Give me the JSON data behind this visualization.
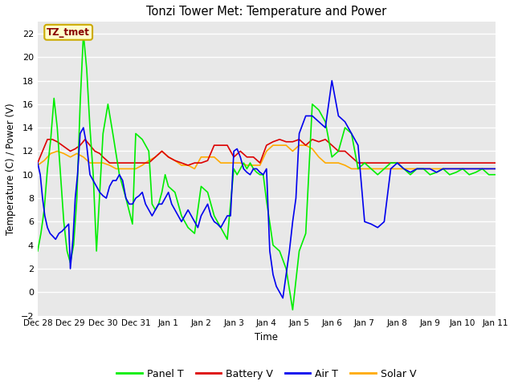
{
  "title": "Tonzi Tower Met: Temperature and Power",
  "xlabel": "Time",
  "ylabel": "Temperature (C) / Power (V)",
  "ylim": [
    -2,
    23
  ],
  "yticks": [
    -2,
    0,
    2,
    4,
    6,
    8,
    10,
    12,
    14,
    16,
    18,
    20,
    22
  ],
  "bg_color": "#e8e8e8",
  "fig_color": "#ffffff",
  "annotation_text": "TZ_tmet",
  "annotation_color": "#880000",
  "annotation_bg": "#ffffcc",
  "annotation_border": "#ccaa00",
  "colors": {
    "panel_t": "#00ee00",
    "battery_v": "#dd0000",
    "air_t": "#0000ee",
    "solar_v": "#ffaa00"
  },
  "legend_labels": [
    "Panel T",
    "Battery V",
    "Air T",
    "Solar V"
  ],
  "x_tick_labels": [
    "Dec 28",
    "Dec 29",
    "Dec 30",
    "Dec 31",
    "Jan 1",
    "Jan 2",
    "Jan 3",
    "Jan 4",
    "Jan 5",
    "Jan 6",
    "Jan 7",
    "Jan 8",
    "Jan 9",
    "Jan 10",
    "Jan 11"
  ],
  "x_tick_positions": [
    0,
    1,
    2,
    3,
    4,
    5,
    6,
    7,
    8,
    9,
    10,
    11,
    12,
    13,
    14
  ],
  "panel_t_x": [
    0.0,
    0.1,
    0.2,
    0.3,
    0.4,
    0.5,
    0.6,
    0.7,
    0.8,
    0.9,
    1.0,
    1.1,
    1.2,
    1.3,
    1.4,
    1.5,
    1.6,
    1.7,
    1.8,
    2.0,
    2.15,
    2.3,
    2.5,
    2.7,
    2.9,
    3.0,
    3.2,
    3.4,
    3.5,
    3.6,
    3.7,
    3.8,
    3.9,
    4.0,
    4.2,
    4.4,
    4.6,
    4.8,
    5.0,
    5.2,
    5.4,
    5.6,
    5.8,
    6.0,
    6.1,
    6.2,
    6.3,
    6.4,
    6.5,
    6.6,
    6.7,
    6.8,
    6.9,
    7.0,
    7.2,
    7.4,
    7.6,
    7.8,
    8.0,
    8.2,
    8.4,
    8.6,
    8.8,
    9.0,
    9.2,
    9.4,
    9.6,
    9.8,
    10.0,
    10.2,
    10.4,
    10.6,
    10.8,
    11.0,
    11.2,
    11.4,
    11.6,
    11.8,
    12.0,
    12.2,
    12.4,
    12.6,
    12.8,
    13.0,
    13.2,
    13.4,
    13.6,
    13.8,
    14.0
  ],
  "panel_t_y": [
    3.5,
    5.0,
    7.0,
    10.5,
    13.0,
    16.5,
    14.0,
    10.0,
    6.0,
    3.5,
    2.5,
    4.0,
    8.0,
    16.0,
    22.0,
    19.0,
    14.0,
    10.0,
    3.5,
    13.5,
    16.0,
    13.5,
    10.0,
    8.0,
    5.8,
    13.5,
    13.0,
    12.0,
    7.5,
    7.0,
    7.5,
    8.5,
    10.0,
    9.0,
    8.5,
    6.5,
    5.5,
    5.0,
    9.0,
    8.5,
    6.5,
    5.5,
    4.5,
    10.5,
    10.0,
    10.5,
    11.0,
    10.5,
    11.0,
    10.5,
    10.2,
    10.0,
    10.0,
    7.8,
    4.0,
    3.5,
    2.0,
    -1.5,
    3.5,
    5.0,
    16.0,
    15.5,
    14.5,
    11.5,
    12.0,
    14.0,
    13.5,
    10.5,
    11.0,
    10.5,
    10.0,
    10.5,
    11.0,
    11.0,
    10.5,
    10.0,
    10.5,
    10.5,
    10.0,
    10.2,
    10.5,
    10.0,
    10.2,
    10.5,
    10.0,
    10.2,
    10.5,
    10.0,
    10.0
  ],
  "battery_v_x": [
    0.0,
    0.15,
    0.3,
    0.45,
    0.6,
    0.75,
    0.9,
    1.0,
    1.15,
    1.3,
    1.45,
    1.6,
    1.75,
    1.9,
    2.0,
    2.2,
    2.4,
    2.6,
    2.8,
    3.0,
    3.2,
    3.4,
    3.6,
    3.8,
    4.0,
    4.2,
    4.4,
    4.6,
    4.8,
    5.0,
    5.2,
    5.4,
    5.6,
    5.8,
    6.0,
    6.2,
    6.4,
    6.6,
    6.8,
    7.0,
    7.2,
    7.4,
    7.6,
    7.8,
    8.0,
    8.2,
    8.4,
    8.6,
    8.8,
    9.0,
    9.2,
    9.4,
    9.6,
    9.8,
    10.0,
    10.2,
    10.4,
    10.6,
    10.8,
    11.0,
    11.2,
    11.4,
    11.6,
    11.8,
    12.0,
    12.2,
    12.4,
    12.6,
    12.8,
    13.0,
    13.2,
    13.4,
    13.6,
    13.8,
    14.0
  ],
  "battery_v_y": [
    11.0,
    12.0,
    13.0,
    13.0,
    12.8,
    12.5,
    12.2,
    12.0,
    12.2,
    12.5,
    13.0,
    12.5,
    12.0,
    11.8,
    11.5,
    11.0,
    11.0,
    11.0,
    11.0,
    11.0,
    11.0,
    11.0,
    11.5,
    12.0,
    11.5,
    11.2,
    11.0,
    10.8,
    11.0,
    11.0,
    11.2,
    12.5,
    12.5,
    12.5,
    11.5,
    12.0,
    11.5,
    11.5,
    11.0,
    12.5,
    12.8,
    13.0,
    12.8,
    12.8,
    13.0,
    12.5,
    13.0,
    12.8,
    13.0,
    12.5,
    12.0,
    12.0,
    11.5,
    11.0,
    11.0,
    11.0,
    11.0,
    11.0,
    11.0,
    11.0,
    11.0,
    11.0,
    11.0,
    11.0,
    11.0,
    11.0,
    11.0,
    11.0,
    11.0,
    11.0,
    11.0,
    11.0,
    11.0,
    11.0,
    11.0
  ],
  "air_t_x": [
    0.0,
    0.08,
    0.15,
    0.22,
    0.3,
    0.38,
    0.45,
    0.55,
    0.65,
    0.75,
    0.85,
    0.95,
    1.0,
    1.08,
    1.15,
    1.22,
    1.3,
    1.4,
    1.5,
    1.6,
    1.7,
    1.8,
    1.9,
    2.0,
    2.1,
    2.2,
    2.3,
    2.4,
    2.5,
    2.6,
    2.7,
    2.8,
    2.9,
    3.0,
    3.1,
    3.2,
    3.3,
    3.4,
    3.5,
    3.6,
    3.7,
    3.8,
    3.9,
    4.0,
    4.1,
    4.2,
    4.3,
    4.4,
    4.5,
    4.6,
    4.7,
    4.8,
    4.9,
    5.0,
    5.1,
    5.2,
    5.3,
    5.4,
    5.5,
    5.6,
    5.7,
    5.8,
    5.9,
    6.0,
    6.1,
    6.2,
    6.3,
    6.4,
    6.5,
    6.6,
    6.7,
    6.8,
    6.9,
    7.0,
    7.1,
    7.2,
    7.3,
    7.4,
    7.5,
    7.6,
    7.7,
    7.8,
    7.9,
    8.0,
    8.2,
    8.4,
    8.6,
    8.8,
    9.0,
    9.2,
    9.4,
    9.6,
    9.8,
    10.0,
    10.2,
    10.4,
    10.6,
    10.8,
    11.0,
    11.2,
    11.4,
    11.6,
    11.8,
    12.0,
    12.2,
    12.4,
    12.6,
    12.8,
    13.0,
    13.2,
    13.4,
    13.6,
    13.8,
    14.0
  ],
  "air_t_y": [
    11.0,
    10.0,
    8.0,
    6.5,
    5.5,
    5.0,
    4.8,
    4.5,
    5.0,
    5.2,
    5.5,
    5.8,
    2.0,
    4.5,
    8.0,
    10.0,
    13.5,
    14.0,
    12.5,
    10.0,
    9.5,
    9.0,
    8.5,
    8.2,
    8.0,
    9.0,
    9.5,
    9.5,
    10.0,
    9.5,
    8.0,
    7.5,
    7.5,
    8.0,
    8.2,
    8.5,
    7.5,
    7.0,
    6.5,
    7.0,
    7.5,
    7.5,
    8.0,
    8.5,
    7.5,
    7.0,
    6.5,
    6.0,
    6.5,
    7.0,
    6.5,
    6.0,
    5.5,
    6.5,
    7.0,
    7.5,
    6.5,
    6.0,
    5.8,
    5.5,
    6.0,
    6.5,
    6.5,
    12.0,
    12.2,
    11.5,
    10.5,
    10.2,
    10.0,
    10.5,
    10.5,
    10.2,
    10.0,
    10.5,
    3.5,
    1.5,
    0.5,
    0.0,
    -0.5,
    1.5,
    3.5,
    6.0,
    8.0,
    13.5,
    15.0,
    15.0,
    14.5,
    14.0,
    18.0,
    15.0,
    14.5,
    13.5,
    12.5,
    6.0,
    5.8,
    5.5,
    6.0,
    10.5,
    11.0,
    10.5,
    10.2,
    10.5,
    10.5,
    10.5,
    10.2,
    10.5,
    10.5,
    10.5,
    10.5,
    10.5,
    10.5,
    10.5,
    10.5,
    10.5
  ],
  "solar_v_x": [
    0.0,
    0.2,
    0.4,
    0.6,
    0.8,
    1.0,
    1.2,
    1.4,
    1.6,
    1.8,
    2.0,
    2.2,
    2.4,
    2.6,
    2.8,
    3.0,
    3.2,
    3.4,
    3.6,
    3.8,
    4.0,
    4.2,
    4.4,
    4.6,
    4.8,
    5.0,
    5.2,
    5.4,
    5.6,
    5.8,
    6.0,
    6.2,
    6.4,
    6.6,
    6.8,
    7.0,
    7.2,
    7.4,
    7.6,
    7.8,
    8.0,
    8.2,
    8.4,
    8.6,
    8.8,
    9.0,
    9.2,
    9.4,
    9.6,
    9.8,
    10.0,
    10.2,
    10.4,
    10.6,
    10.8,
    11.0,
    11.2,
    11.4,
    11.6,
    11.8,
    12.0,
    12.2,
    12.4,
    12.6,
    12.8,
    13.0,
    13.2,
    13.4,
    13.6,
    13.8,
    14.0
  ],
  "solar_v_y": [
    10.8,
    11.2,
    11.8,
    12.0,
    11.8,
    11.5,
    11.8,
    11.5,
    11.0,
    11.0,
    11.0,
    10.8,
    10.5,
    10.5,
    10.5,
    10.5,
    10.8,
    11.2,
    11.5,
    12.0,
    11.5,
    11.2,
    10.8,
    10.8,
    10.5,
    11.5,
    11.5,
    11.5,
    11.0,
    11.0,
    11.0,
    11.0,
    10.8,
    10.8,
    10.8,
    12.0,
    12.5,
    12.5,
    12.5,
    12.0,
    12.5,
    12.5,
    12.2,
    11.5,
    11.0,
    11.0,
    11.0,
    10.8,
    10.5,
    10.5,
    10.5,
    10.5,
    10.5,
    10.5,
    10.5,
    10.5,
    10.5,
    10.5,
    10.5,
    10.5,
    10.5,
    10.5,
    10.5,
    10.5,
    10.5,
    10.5,
    10.5,
    10.5,
    10.5,
    10.5,
    10.5
  ]
}
